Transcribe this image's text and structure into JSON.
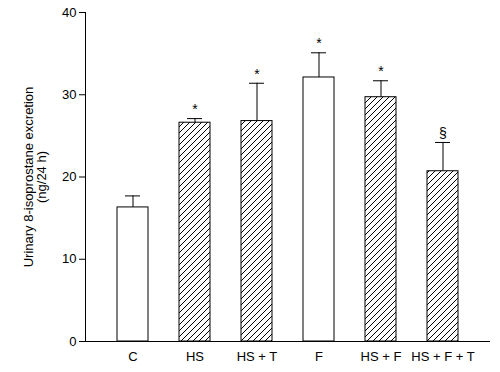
{
  "chart_data": {
    "type": "bar",
    "y_label": "Urinary 8-isoprostane excretion\n(ng/24 h)",
    "categories": [
      "C",
      "HS",
      "HS + T",
      "F",
      "HS + F",
      "HS + F + T"
    ],
    "values": [
      16.3,
      26.6,
      26.8,
      32.1,
      29.7,
      20.7
    ],
    "errors": [
      1.4,
      0.5,
      4.6,
      3.0,
      2.0,
      3.5
    ],
    "colors": [
      "#ffffff",
      "#000000",
      "#000000",
      "#ffffff",
      "#000000",
      "#000000"
    ],
    "annotations": [
      {
        "category": "HS",
        "text": "*"
      },
      {
        "category": "HS + T",
        "text": "*"
      },
      {
        "category": "F",
        "text": "*"
      },
      {
        "category": "HS + F",
        "text": "*"
      },
      {
        "category": "HS + F + T",
        "text": "§"
      }
    ],
    "ylim": [
      0,
      40
    ],
    "yticks": [
      0,
      10,
      20,
      30,
      40
    ],
    "grid": false
  }
}
